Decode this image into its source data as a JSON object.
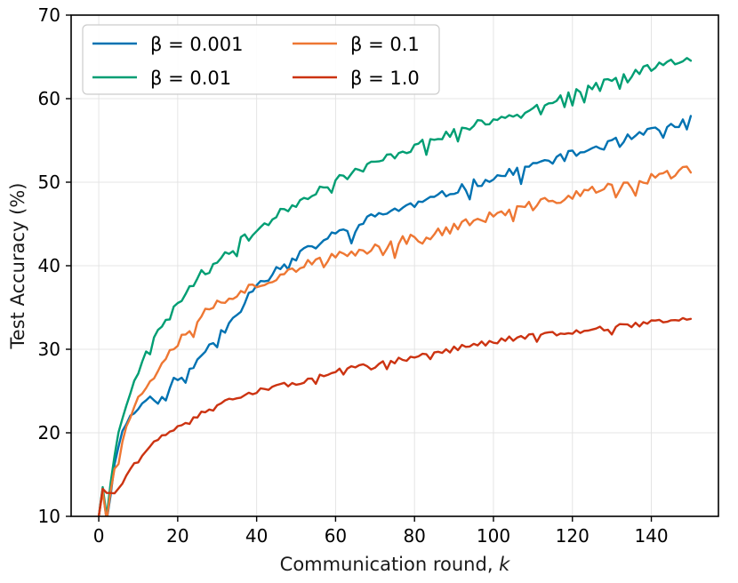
{
  "chart_data": {
    "type": "line",
    "title": "",
    "xlabel": "Communication round, ",
    "xlabel_var": "k",
    "ylabel": "Test Accuracy (%)",
    "xlim": [
      -7,
      157
    ],
    "ylim": [
      10,
      70
    ],
    "xticks": [
      0,
      20,
      40,
      60,
      80,
      100,
      120,
      140
    ],
    "yticks": [
      10,
      20,
      30,
      40,
      50,
      60,
      70
    ],
    "grid": true,
    "legend_position": "top-left",
    "legend_columns": 2,
    "series": [
      {
        "name": "β = 0.001",
        "color": "#0072b2",
        "anchors": [
          [
            0,
            10
          ],
          [
            1,
            13.2
          ],
          [
            2,
            9.5
          ],
          [
            3,
            12.5
          ],
          [
            4,
            16.5
          ],
          [
            5,
            18.5
          ],
          [
            6,
            20
          ],
          [
            7,
            21.5
          ],
          [
            8,
            22.5
          ],
          [
            9,
            22
          ],
          [
            10,
            23
          ],
          [
            12,
            24
          ],
          [
            14,
            24.3
          ],
          [
            16,
            24.5
          ],
          [
            18,
            25.5
          ],
          [
            20,
            27
          ],
          [
            22,
            26.5
          ],
          [
            24,
            28
          ],
          [
            26,
            29
          ],
          [
            28,
            30.5
          ],
          [
            30,
            31.5
          ],
          [
            32,
            32.5
          ],
          [
            34,
            34
          ],
          [
            36,
            35
          ],
          [
            38,
            36.5
          ],
          [
            40,
            38
          ],
          [
            45,
            39.5
          ],
          [
            50,
            41
          ],
          [
            55,
            42.5
          ],
          [
            60,
            43.8
          ],
          [
            65,
            44.5
          ],
          [
            70,
            46
          ],
          [
            75,
            46.7
          ],
          [
            80,
            47.3
          ],
          [
            85,
            48
          ],
          [
            90,
            49
          ],
          [
            95,
            49.8
          ],
          [
            100,
            50.5
          ],
          [
            105,
            51.2
          ],
          [
            110,
            52
          ],
          [
            115,
            52.7
          ],
          [
            120,
            53.3
          ],
          [
            125,
            54
          ],
          [
            130,
            54.7
          ],
          [
            135,
            55.3
          ],
          [
            140,
            56
          ],
          [
            145,
            56.7
          ],
          [
            150,
            57.5
          ]
        ],
        "noise": 0.55,
        "seed": 11
      },
      {
        "name": "β = 0.01",
        "color": "#009e73",
        "anchors": [
          [
            0,
            10
          ],
          [
            1,
            13.5
          ],
          [
            2,
            10
          ],
          [
            3,
            14
          ],
          [
            4,
            17.5
          ],
          [
            5,
            20
          ],
          [
            6,
            21.5
          ],
          [
            7,
            23.5
          ],
          [
            8,
            25
          ],
          [
            9,
            26.5
          ],
          [
            10,
            27.5
          ],
          [
            12,
            30
          ],
          [
            14,
            31.5
          ],
          [
            16,
            32.5
          ],
          [
            18,
            34
          ],
          [
            20,
            35.5
          ],
          [
            22,
            36.8
          ],
          [
            24,
            38
          ],
          [
            26,
            39
          ],
          [
            28,
            39.5
          ],
          [
            30,
            40.8
          ],
          [
            32,
            41.5
          ],
          [
            34,
            42.2
          ],
          [
            36,
            43
          ],
          [
            38,
            43.5
          ],
          [
            40,
            44.2
          ],
          [
            45,
            46
          ],
          [
            50,
            47.5
          ],
          [
            55,
            49
          ],
          [
            60,
            50.2
          ],
          [
            65,
            51.3
          ],
          [
            70,
            52.3
          ],
          [
            75,
            53.3
          ],
          [
            80,
            54.3
          ],
          [
            85,
            55.2
          ],
          [
            90,
            56
          ],
          [
            95,
            56.8
          ],
          [
            100,
            57.5
          ],
          [
            105,
            58.3
          ],
          [
            110,
            59
          ],
          [
            115,
            59.8
          ],
          [
            120,
            60.5
          ],
          [
            125,
            61.3
          ],
          [
            130,
            62.2
          ],
          [
            135,
            63
          ],
          [
            140,
            63.8
          ],
          [
            145,
            64.5
          ],
          [
            150,
            65
          ]
        ],
        "noise": 0.5,
        "seed": 23
      },
      {
        "name": "β = 0.1",
        "color": "#ee7733",
        "anchors": [
          [
            0,
            10
          ],
          [
            1,
            13
          ],
          [
            2,
            9.5
          ],
          [
            3,
            13
          ],
          [
            4,
            16
          ],
          [
            5,
            18
          ],
          [
            6,
            19.5
          ],
          [
            7,
            21
          ],
          [
            8,
            22
          ],
          [
            9,
            23
          ],
          [
            10,
            24
          ],
          [
            12,
            25.5
          ],
          [
            14,
            27
          ],
          [
            16,
            28.5
          ],
          [
            18,
            30
          ],
          [
            20,
            31
          ],
          [
            22,
            32
          ],
          [
            24,
            33
          ],
          [
            26,
            34
          ],
          [
            28,
            35
          ],
          [
            30,
            35.5
          ],
          [
            32,
            36
          ],
          [
            34,
            36.5
          ],
          [
            36,
            37
          ],
          [
            38,
            37.3
          ],
          [
            40,
            37.6
          ],
          [
            45,
            38.8
          ],
          [
            50,
            39.8
          ],
          [
            55,
            40.4
          ],
          [
            60,
            41
          ],
          [
            65,
            41.6
          ],
          [
            70,
            42.2
          ],
          [
            75,
            42.8
          ],
          [
            80,
            43.4
          ],
          [
            85,
            43.8
          ],
          [
            90,
            44.6
          ],
          [
            95,
            45.3
          ],
          [
            100,
            46
          ],
          [
            105,
            46.6
          ],
          [
            110,
            47.2
          ],
          [
            115,
            47.8
          ],
          [
            120,
            48.4
          ],
          [
            125,
            49
          ],
          [
            130,
            49.3
          ],
          [
            135,
            49.8
          ],
          [
            140,
            50.4
          ],
          [
            145,
            51
          ],
          [
            150,
            51.5
          ]
        ],
        "noise": 0.6,
        "seed": 37
      },
      {
        "name": "β = 1.0",
        "color": "#cc3311",
        "anchors": [
          [
            0,
            10
          ],
          [
            1,
            13.3
          ],
          [
            2,
            12.8
          ],
          [
            3,
            12.8
          ],
          [
            4,
            12.9
          ],
          [
            5,
            13.2
          ],
          [
            6,
            14
          ],
          [
            7,
            15
          ],
          [
            8,
            15.7
          ],
          [
            10,
            16.5
          ],
          [
            12,
            17.8
          ],
          [
            14,
            18.8
          ],
          [
            16,
            19.4
          ],
          [
            18,
            20
          ],
          [
            20,
            20.8
          ],
          [
            22,
            21.3
          ],
          [
            24,
            21.8
          ],
          [
            26,
            22.3
          ],
          [
            28,
            22.8
          ],
          [
            30,
            23.3
          ],
          [
            32,
            23.8
          ],
          [
            34,
            24.2
          ],
          [
            36,
            24.5
          ],
          [
            38,
            24.7
          ],
          [
            40,
            24.9
          ],
          [
            45,
            25.5
          ],
          [
            50,
            26
          ],
          [
            55,
            26.5
          ],
          [
            60,
            27.3
          ],
          [
            65,
            27.8
          ],
          [
            70,
            28.2
          ],
          [
            75,
            28.6
          ],
          [
            80,
            29.1
          ],
          [
            85,
            29.6
          ],
          [
            90,
            30.1
          ],
          [
            95,
            30.5
          ],
          [
            100,
            30.9
          ],
          [
            105,
            31.3
          ],
          [
            110,
            31.7
          ],
          [
            115,
            31.9
          ],
          [
            120,
            32.1
          ],
          [
            125,
            32.4
          ],
          [
            130,
            32.6
          ],
          [
            135,
            32.9
          ],
          [
            140,
            33.2
          ],
          [
            145,
            33.5
          ],
          [
            150,
            33.7
          ]
        ],
        "noise": 0.3,
        "seed": 51
      }
    ]
  }
}
